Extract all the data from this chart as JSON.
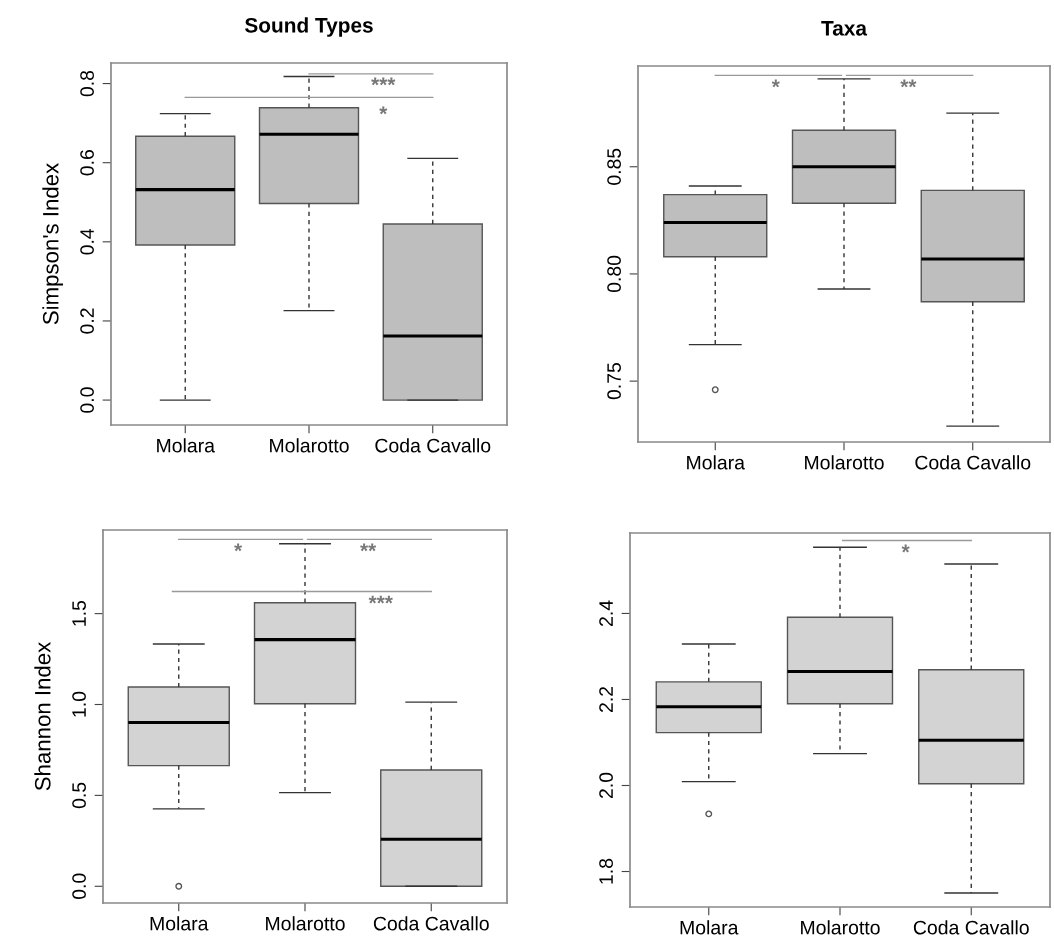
{
  "chart_data": [
    {
      "type": "box",
      "title": "Sound Types",
      "ylabel": "Simpson's Index",
      "categories": [
        "Molara",
        "Molarotto",
        "Coda Cavallo"
      ],
      "color": "#bebebe",
      "boxes": [
        {
          "low": 0.0,
          "q1": 0.392,
          "median": 0.532,
          "q3": 0.667,
          "high": 0.724
        },
        {
          "low": 0.226,
          "q1": 0.497,
          "median": 0.672,
          "q3": 0.739,
          "high": 0.818
        },
        {
          "low": 0.0,
          "q1": 0.0,
          "median": 0.162,
          "q3": 0.445,
          "high": 0.611
        }
      ],
      "ylim": [
        -0.063,
        0.852
      ],
      "yticks": [
        {
          "value": 0,
          "label": "0.0"
        },
        0.2,
        0.4,
        0.6,
        0.8
      ],
      "grid": false,
      "annotations": [
        "***",
        "*"
      ]
    },
    {
      "type": "box",
      "title": "Taxa",
      "categories": [
        "Molara",
        "Molarotto",
        "Coda Cavallo"
      ],
      "color": "#bebebe",
      "boxes": [
        {
          "low": 0.767,
          "q1": 0.808,
          "median": 0.824,
          "q3": 0.837,
          "high": 0.841,
          "outliers": [
            0.746
          ]
        },
        {
          "low": 0.793,
          "q1": 0.833,
          "median": 0.85,
          "q3": 0.867,
          "high": 0.891
        },
        {
          "low": 0.729,
          "q1": 0.787,
          "median": 0.807,
          "q3": 0.839,
          "high": 0.875
        }
      ],
      "ylim": [
        0.7216,
        0.897
      ],
      "yticks": [
        0.75,
        {
          "value": 0.8,
          "label": "0.80"
        },
        0.85
      ],
      "grid": false,
      "annotations": [
        "*",
        "**"
      ]
    },
    {
      "type": "box",
      "ylabel": "Shannon Index",
      "categories": [
        "Molara",
        "Molarotto",
        "Coda Cavallo"
      ],
      "color": "#d3d3d3",
      "boxes": [
        {
          "low": 0.426,
          "q1": 0.664,
          "median": 0.901,
          "q3": 1.096,
          "high": 1.333,
          "outliers": [
            0.0
          ]
        },
        {
          "low": 0.515,
          "q1": 1.004,
          "median": 1.357,
          "q3": 1.56,
          "high": 1.884
        },
        {
          "low": 0.0,
          "q1": 0.0,
          "median": 0.259,
          "q3": 0.64,
          "high": 1.013
        }
      ],
      "ylim": [
        -0.092,
        1.96
      ],
      "yticks": [
        {
          "value": 0,
          "label": "0.0"
        },
        0.5,
        {
          "value": 1,
          "label": "1.0"
        },
        1.5
      ],
      "grid": false,
      "annotations": [
        "*",
        "**",
        "***"
      ]
    },
    {
      "type": "box",
      "categories": [
        "Molara",
        "Molarotto",
        "Coda Cavallo"
      ],
      "color": "#d3d3d3",
      "boxes": [
        {
          "low": 2.009,
          "q1": 2.123,
          "median": 2.183,
          "q3": 2.241,
          "high": 2.329,
          "outliers": [
            1.934
          ]
        },
        {
          "low": 2.074,
          "q1": 2.19,
          "median": 2.265,
          "q3": 2.391,
          "high": 2.554
        },
        {
          "low": 1.75,
          "q1": 2.004,
          "median": 2.105,
          "q3": 2.269,
          "high": 2.515
        }
      ],
      "ylim": [
        1.7175,
        2.587
      ],
      "yticks": [
        1.8,
        {
          "value": 2,
          "label": "2.0"
        },
        2.2,
        2.4
      ],
      "grid": false,
      "annotations": [
        "*"
      ]
    }
  ]
}
